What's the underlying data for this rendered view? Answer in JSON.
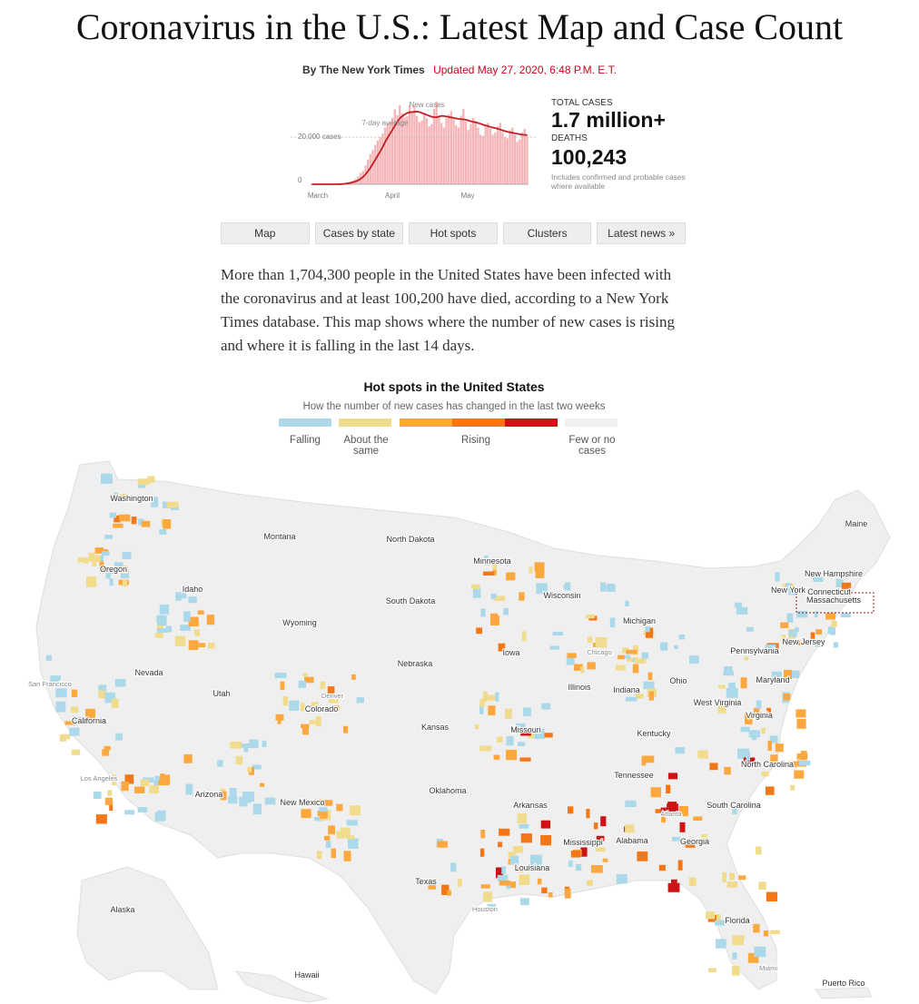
{
  "headline": "Coronavirus in the U.S.: Latest Map and Case Count",
  "byline": {
    "author": "By The New York Times",
    "updated": "Updated May 27, 2020, 6:48 P.M. E.T."
  },
  "summary_chart": {
    "annotations": {
      "new_cases": "New cases",
      "avg": "7-day average",
      "y_ref": "20,000 cases",
      "y_zero": "0"
    },
    "months": [
      "March",
      "April",
      "May"
    ],
    "daily_new_cases": [
      0,
      0,
      0,
      0,
      0,
      0,
      0,
      0,
      0,
      0,
      0,
      100,
      200,
      400,
      700,
      900,
      1200,
      1700,
      2400,
      3300,
      4700,
      5600,
      8000,
      10500,
      12800,
      14500,
      16700,
      18600,
      20000,
      21600,
      24000,
      25800,
      26300,
      28200,
      31800,
      29300,
      33500,
      30100,
      28300,
      28900,
      33400,
      30200,
      33000,
      29000,
      26400,
      27000,
      30000,
      28000,
      24500,
      25500,
      32000,
      35000,
      28500,
      26000,
      24000,
      28000,
      29500,
      31000,
      27500,
      25000,
      24000,
      29000,
      32000,
      26500,
      23000,
      25500,
      28000,
      27000,
      24000,
      21000,
      20500,
      25000,
      26000,
      23500,
      21000,
      22000,
      24500,
      26000,
      22000,
      20000,
      19500,
      23000,
      24000,
      21000,
      18000,
      19000,
      22000,
      23500,
      20500
    ],
    "seven_day_avg": [
      0,
      0,
      0,
      0,
      0,
      0,
      0,
      0,
      0,
      0,
      0,
      30,
      80,
      160,
      300,
      450,
      650,
      900,
      1250,
      1700,
      2350,
      3200,
      4300,
      5600,
      7100,
      8800,
      10500,
      12300,
      14000,
      15900,
      18000,
      19800,
      21500,
      23200,
      25000,
      26600,
      28000,
      28900,
      29600,
      30200,
      30500,
      30600,
      30700,
      30800,
      30600,
      30200,
      29800,
      29400,
      29000,
      28600,
      28400,
      28400,
      28700,
      29000,
      28900,
      28700,
      28500,
      28300,
      28100,
      27900,
      27700,
      27600,
      27500,
      27300,
      27000,
      26700,
      26400,
      26200,
      25900,
      25600,
      25200,
      24900,
      24600,
      24300,
      24000,
      23800,
      23500,
      23200,
      22800,
      22500,
      22200,
      22000,
      21800,
      21600,
      21400,
      21200,
      21000,
      20900,
      20800
    ],
    "ylim": [
      0,
      35000
    ]
  },
  "stats": {
    "total_label": "Total cases",
    "total_value": "1.7 million+",
    "deaths_label": "Deaths",
    "deaths_value": "100,243",
    "note": "Includes confirmed and probable cases where available"
  },
  "nav": [
    "Map",
    "Cases by state",
    "Hot spots",
    "Clusters",
    "Latest news »"
  ],
  "intro": "More than 1,704,300 people in the United States have been infected with the coronavirus and at least 100,200 have died, according to a New York Times database. This map shows where the number of new cases is rising and where it is falling in the last 14 days.",
  "legend": {
    "title": "Hot spots in the United States",
    "subtitle": "How the number of new cases has changed in the last two weeks",
    "categories": [
      "Falling",
      "About the same",
      "Rising",
      "Few or no cases"
    ],
    "colors": {
      "falling": "#abd9e9",
      "same": "#f1dc8d",
      "rising1": "#fca83e",
      "rising2": "#f47717",
      "rising3": "#cc1417",
      "few": "#efefef"
    }
  },
  "map": {
    "state_labels": [
      "Washington",
      "Montana",
      "North Dakota",
      "Minnesota",
      "Maine",
      "Oregon",
      "Idaho",
      "South Dakota",
      "Wisconsin",
      "New Hampshire",
      "New York",
      "Massachusetts",
      "Michigan",
      "Wyoming",
      "Iowa",
      "Chicago",
      "Pennsylvania",
      "New Jersey",
      "Connecticut",
      "Nebraska",
      "Nevada",
      "San Francisco",
      "Utah",
      "Denver",
      "Colorado",
      "Illinois",
      "Indiana",
      "Ohio",
      "Maryland",
      "West Virginia",
      "Virginia",
      "California",
      "Kansas",
      "Missouri",
      "Kentucky",
      "Los Angeles",
      "Arizona",
      "New Mexico",
      "Oklahoma",
      "Tennessee",
      "North Carolina",
      "Arkansas",
      "Atlanta",
      "South Carolina",
      "Mississippi",
      "Alabama",
      "Georgia",
      "Louisiana",
      "Texas",
      "Houston",
      "Alaska",
      "Florida",
      "Hawaii",
      "Miami",
      "Puerto Rico"
    ]
  }
}
